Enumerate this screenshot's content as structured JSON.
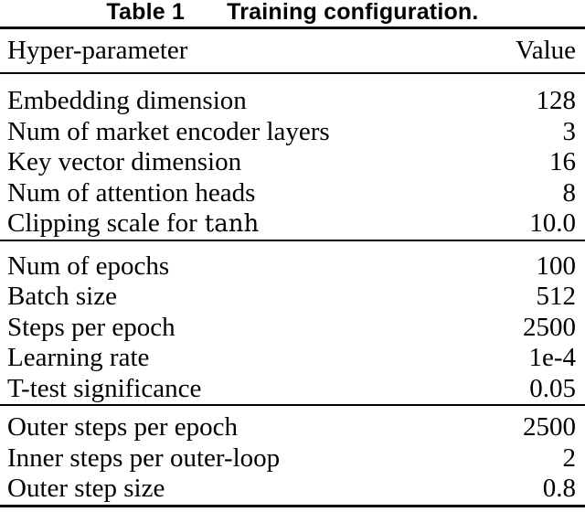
{
  "page": {
    "background_color": "#ffffff",
    "text_color": "#000000"
  },
  "caption": {
    "label": "Table 1",
    "title": "Training configuration."
  },
  "table": {
    "header": {
      "param": "Hyper-parameter",
      "value": "Value"
    },
    "sections": [
      {
        "rows": [
          {
            "param": "Embedding dimension",
            "value": "128"
          },
          {
            "param": "Num of market encoder layers",
            "value": "3"
          },
          {
            "param": "Key vector dimension",
            "value": "16"
          },
          {
            "param": "Num of attention heads",
            "value": "8"
          },
          {
            "param": "Clipping scale for",
            "param_math": "tanh",
            "value": "10.0"
          }
        ]
      },
      {
        "rows": [
          {
            "param": "Num of epochs",
            "value": "100"
          },
          {
            "param": "Batch size",
            "value": "512"
          },
          {
            "param": "Steps per epoch",
            "value": "2500"
          },
          {
            "param": "Learning rate",
            "value": "1e-4"
          },
          {
            "param": "T-test significance",
            "value": "0.05"
          }
        ]
      },
      {
        "rows": [
          {
            "param": "Outer steps per epoch",
            "value": "2500"
          },
          {
            "param": "Inner steps per outer-loop",
            "value": "2"
          },
          {
            "param": "Outer step size",
            "value": "0.8"
          }
        ]
      }
    ]
  }
}
